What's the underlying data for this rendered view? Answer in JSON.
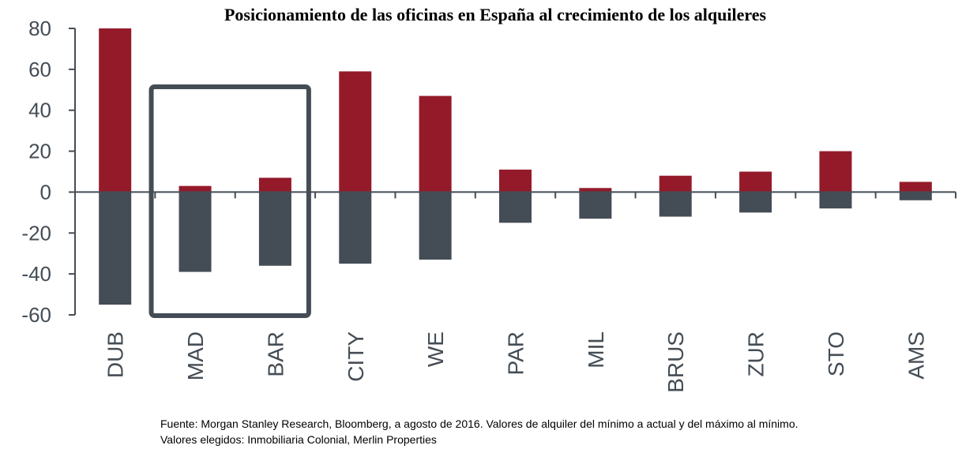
{
  "chart_data": {
    "type": "bar",
    "title": "Posicionamiento de las oficinas en España al crecimiento de los alquileres",
    "categories": [
      "DUB",
      "MAD",
      "BAR",
      "CITY",
      "WE",
      "PAR",
      "MIL",
      "BRUS",
      "ZUR",
      "STO",
      "AMS"
    ],
    "series": [
      {
        "values": [
          80,
          3,
          7,
          59,
          47,
          11,
          2,
          8,
          10,
          20,
          5
        ],
        "color": "#941a2a"
      },
      {
        "values": [
          -55,
          -39,
          -36,
          -35,
          -33,
          -15,
          -13,
          -12,
          -10,
          -8,
          -4
        ],
        "color": "#444d55"
      }
    ],
    "ylim": [
      -60,
      80
    ],
    "yticks": [
      80,
      60,
      40,
      20,
      0,
      -20,
      -40,
      -60
    ],
    "grid": false,
    "highlight": [
      "MAD",
      "BAR"
    ],
    "highlight_color": "#444d55"
  },
  "notes": {
    "line1": "Fuente: Morgan Stanley Research, Bloomberg, a agosto de 2016. Valores de alquiler del mínimo a actual y del máximo al mínimo.",
    "line2": "Valores elegidos: Inmobiliaria Colonial, Merlin Properties"
  }
}
